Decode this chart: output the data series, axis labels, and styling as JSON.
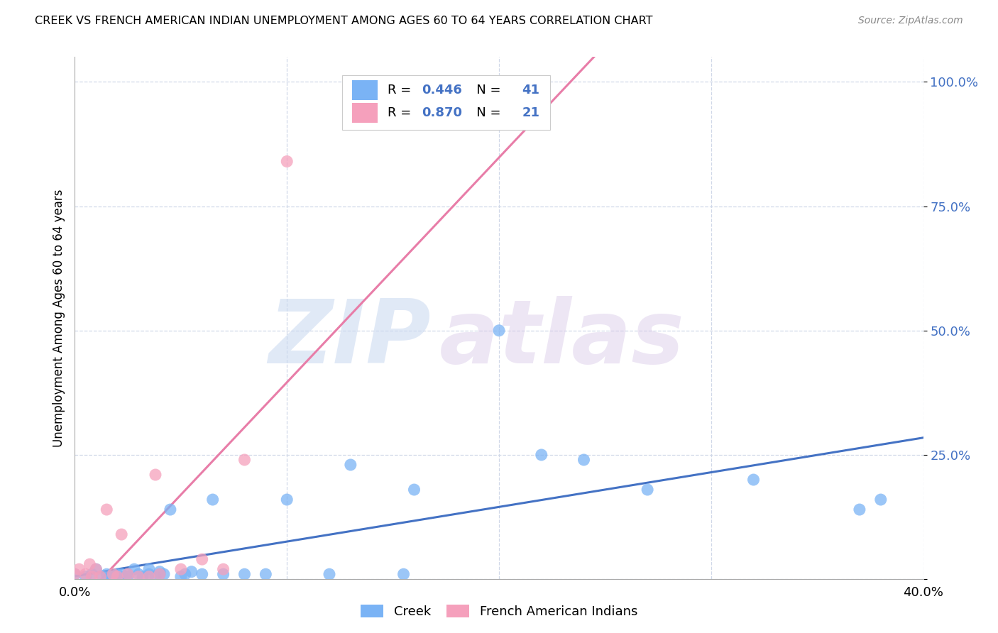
{
  "title": "CREEK VS FRENCH AMERICAN INDIAN UNEMPLOYMENT AMONG AGES 60 TO 64 YEARS CORRELATION CHART",
  "source": "Source: ZipAtlas.com",
  "ylabel": "Unemployment Among Ages 60 to 64 years",
  "xlim": [
    0.0,
    0.4
  ],
  "ylim": [
    0.0,
    1.05
  ],
  "xticks": [
    0.0,
    0.1,
    0.2,
    0.3,
    0.4
  ],
  "xticklabels": [
    "0.0%",
    "",
    "",
    "",
    "40.0%"
  ],
  "yticks": [
    0.0,
    0.25,
    0.5,
    0.75,
    1.0
  ],
  "yticklabels": [
    "",
    "25.0%",
    "50.0%",
    "75.0%",
    "100.0%"
  ],
  "creek_color": "#7ab3f5",
  "french_color": "#f5a0bc",
  "trendline_creek_color": "#4472c4",
  "trendline_french_color": "#e87da8",
  "legend_value_color": "#4472c4",
  "creek_R": "0.446",
  "creek_N": "41",
  "french_R": "0.870",
  "french_N": "21",
  "watermark_zip": "ZIP",
  "watermark_atlas": "atlas",
  "background_color": "#ffffff",
  "grid_color": "#d0d8e8",
  "creek_scatter_x": [
    0.0,
    0.005,
    0.008,
    0.01,
    0.013,
    0.015,
    0.018,
    0.02,
    0.022,
    0.025,
    0.025,
    0.028,
    0.03,
    0.032,
    0.035,
    0.035,
    0.038,
    0.04,
    0.04,
    0.042,
    0.045,
    0.05,
    0.052,
    0.055,
    0.06,
    0.065,
    0.07,
    0.08,
    0.09,
    0.1,
    0.12,
    0.13,
    0.155,
    0.16,
    0.2,
    0.22,
    0.24,
    0.27,
    0.32,
    0.37,
    0.38
  ],
  "creek_scatter_y": [
    0.01,
    0.005,
    0.01,
    0.02,
    0.005,
    0.01,
    0.005,
    0.01,
    0.01,
    0.005,
    0.01,
    0.02,
    0.01,
    0.005,
    0.01,
    0.02,
    0.005,
    0.01,
    0.015,
    0.01,
    0.14,
    0.005,
    0.01,
    0.015,
    0.01,
    0.16,
    0.01,
    0.01,
    0.01,
    0.16,
    0.01,
    0.23,
    0.01,
    0.18,
    0.5,
    0.25,
    0.24,
    0.18,
    0.2,
    0.14,
    0.16
  ],
  "french_scatter_x": [
    0.0,
    0.002,
    0.005,
    0.007,
    0.008,
    0.01,
    0.012,
    0.015,
    0.018,
    0.02,
    0.022,
    0.025,
    0.03,
    0.035,
    0.038,
    0.04,
    0.05,
    0.06,
    0.07,
    0.08,
    0.1
  ],
  "french_scatter_y": [
    0.01,
    0.02,
    0.01,
    0.03,
    0.005,
    0.02,
    0.005,
    0.14,
    0.01,
    0.005,
    0.09,
    0.01,
    0.005,
    0.005,
    0.21,
    0.01,
    0.02,
    0.04,
    0.02,
    0.24,
    0.84
  ],
  "legend_border_color": "#cccccc"
}
